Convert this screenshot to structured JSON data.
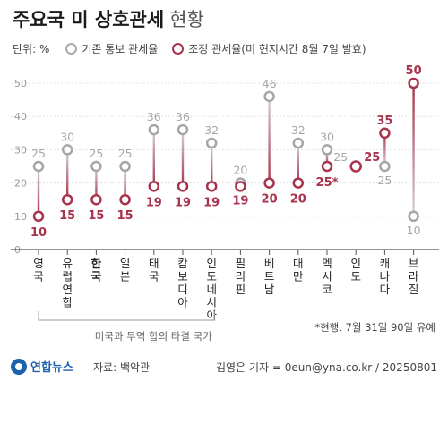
{
  "title": {
    "main": "주요국 미 상호관세",
    "sub": "현황"
  },
  "legend": {
    "unit": "단위: %",
    "original": "기존 통보 관세율",
    "adjusted": "조정 관세율(미 현지시간 8월 7일 발효)"
  },
  "colors": {
    "original": "#a6a6a6",
    "adjusted": "#a8334c",
    "line_gradient_top": "#d7d7d7",
    "line_gradient_bottom": "#a8334c"
  },
  "chart_data": {
    "type": "dumbbell",
    "yticks": [
      "50",
      "40",
      "30",
      "20",
      "10",
      "0"
    ],
    "ylim": [
      0,
      50
    ],
    "grid": true,
    "countries": [
      {
        "name": "영국",
        "original": 25,
        "adjusted": 10,
        "original_label": "25",
        "adjusted_label": "10",
        "bold": false
      },
      {
        "name": "유럽연합",
        "original": 30,
        "adjusted": 15,
        "original_label": "30",
        "adjusted_label": "15",
        "bold": false
      },
      {
        "name": "한국",
        "original": 25,
        "adjusted": 15,
        "original_label": "25",
        "adjusted_label": "15",
        "bold": true
      },
      {
        "name": "일본",
        "original": 25,
        "adjusted": 15,
        "original_label": "25",
        "adjusted_label": "15",
        "bold": false
      },
      {
        "name": "태국",
        "original": 36,
        "adjusted": 19,
        "original_label": "36",
        "adjusted_label": "19",
        "bold": false
      },
      {
        "name": "캄보디아",
        "original": 36,
        "adjusted": 19,
        "original_label": "36",
        "adjusted_label": "19",
        "bold": false
      },
      {
        "name": "인도네시아",
        "original": 32,
        "adjusted": 19,
        "original_label": "32",
        "adjusted_label": "19",
        "bold": false
      },
      {
        "name": "필리핀",
        "original": 20,
        "adjusted": 19,
        "original_label": "20",
        "adjusted_label": "19",
        "bold": false
      },
      {
        "name": "베트남",
        "original": 46,
        "adjusted": 20,
        "original_label": "46",
        "adjusted_label": "20",
        "bold": false
      },
      {
        "name": "대만",
        "original": 32,
        "adjusted": 20,
        "original_label": "32",
        "adjusted_label": "20",
        "bold": false
      },
      {
        "name": "멕시코",
        "original": 30,
        "adjusted": 25,
        "original_label": "30",
        "adjusted_label": "25*",
        "bold": false
      },
      {
        "name": "인도",
        "original": 25,
        "adjusted": 25,
        "original_label": "25",
        "adjusted_label": "25",
        "bold": false
      },
      {
        "name": "캐나다",
        "original": 25,
        "adjusted": 35,
        "original_label": "25",
        "adjusted_label": "35",
        "bold": false
      },
      {
        "name": "브라질",
        "original": 10,
        "adjusted": 50,
        "original_label": "10",
        "adjusted_label": "50",
        "bold": false
      }
    ],
    "bracket_label": "미국과 무역 합의 타결 국가",
    "bracket_range": [
      0,
      3
    ]
  },
  "footnote": "*현행, 7월 31일 90일 유예",
  "credit": {
    "logo": "연합뉴스",
    "source": "자료: 백악관",
    "author": "김영은 기자 = 0eun@yna.co.kr / 20250801"
  }
}
